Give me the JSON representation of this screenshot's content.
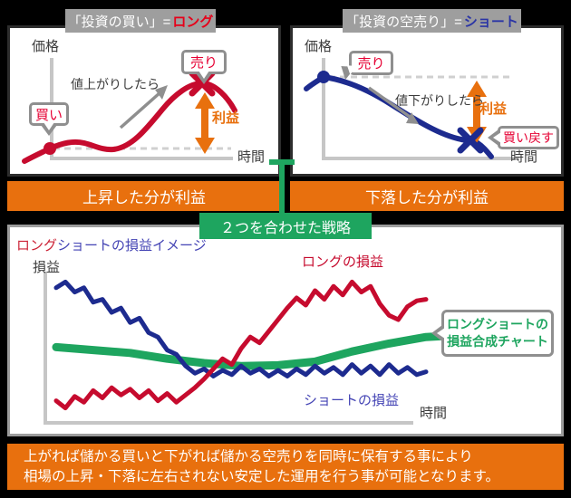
{
  "panels": {
    "long": {
      "title_plain": "「投資の買い」=",
      "title_accent": "ロング",
      "y_axis": "価格",
      "x_axis": "時間",
      "note": "値上がりしたら",
      "buy_label": "買い",
      "sell_label": "売り",
      "profit_label": "利益",
      "banner": "上昇した分が利益"
    },
    "short": {
      "title_plain": "「投資の空売り」=",
      "title_accent": "ショート",
      "y_axis": "価格",
      "x_axis": "時間",
      "note": "値下がりしたら",
      "sell_label": "売り",
      "buyback_label": "買い戻す",
      "profit_label": "利益",
      "banner": "下落した分が利益"
    }
  },
  "strategy_band_label": "２つを合わせた戦略",
  "bottom": {
    "title_accent": "ロング",
    "title_rest": "ショートの損益イメージ",
    "y_axis": "損益",
    "x_axis": "時間",
    "long_series_label": "ロングの損益",
    "short_series_label": "ショートの損益",
    "bubble_line1": "ロングショートの",
    "bubble_line2": "損益合成チャート"
  },
  "footer": {
    "line1": "上がれば儲かる買いと下がれば儲かる空売りを同時に保有する事により",
    "line2": "相場の上昇・下落に左右されない安定した運用を行う事が可能となります。"
  },
  "colors": {
    "long_red": "#c60b2e",
    "accent_red": "#e60019",
    "bubble_red": "#e60033",
    "short_blue": "#1d2b8f",
    "accent_blue": "#2b35a5",
    "title_blue": "#4343b4",
    "orange": "#e8700e",
    "green": "#1ea55f",
    "tab_gray": "#9e9e9e",
    "axis_gray": "#c6c6c6",
    "arrow_gray": "#8f8f8f",
    "dark_text": "#3c3c3c"
  },
  "chart_data": {
    "type": "line",
    "title": "ロングショートの損益イメージ",
    "xlabel": "時間",
    "ylabel": "損益",
    "x_range": [
      0,
      107
    ],
    "value_range": [
      0,
      1
    ],
    "grid": false,
    "legend_position": "inline-annotations",
    "annotations": [
      "ロングの損益",
      "ショートの損益",
      "ロングショートの損益合成チャート"
    ],
    "series": [
      {
        "name": "ロングショートの損益合成チャート",
        "color": "#1ea55f",
        "stroke_width": 9,
        "x": [
          0,
          10,
          20,
          30,
          40,
          50,
          60,
          70,
          80,
          90,
          100,
          107
        ],
        "values": [
          0.51,
          0.49,
          0.47,
          0.43,
          0.4,
          0.38,
          0.385,
          0.41,
          0.48,
          0.535,
          0.58,
          0.59
        ]
      },
      {
        "name": "ショートの損益",
        "color": "#1d2b8f",
        "stroke_width": 5,
        "x": [
          0,
          2.5,
          5,
          7.5,
          10,
          12.5,
          15,
          17.5,
          20,
          22.5,
          25,
          27.5,
          30,
          32.5,
          35,
          37.5,
          40,
          42.5,
          45,
          47.5,
          50,
          52.5,
          55,
          57.5,
          60,
          62.5,
          65,
          67.5,
          70,
          72.5,
          75,
          77.5,
          80,
          82.5,
          85,
          87.5,
          90,
          92.5,
          95,
          97.5,
          100
        ],
        "values": [
          0.92,
          0.96,
          0.89,
          0.92,
          0.82,
          0.84,
          0.75,
          0.78,
          0.68,
          0.71,
          0.61,
          0.58,
          0.49,
          0.46,
          0.38,
          0.33,
          0.36,
          0.31,
          0.35,
          0.32,
          0.38,
          0.33,
          0.36,
          0.31,
          0.35,
          0.31,
          0.36,
          0.32,
          0.38,
          0.33,
          0.37,
          0.32,
          0.39,
          0.33,
          0.38,
          0.32,
          0.39,
          0.33,
          0.37,
          0.32,
          0.34
        ]
      },
      {
        "name": "ロングの損益",
        "color": "#c60b2e",
        "stroke_width": 5,
        "x": [
          0,
          2.5,
          5,
          7.5,
          10,
          12.5,
          15,
          17.5,
          20,
          22.5,
          25,
          27.5,
          30,
          32.5,
          35,
          37.5,
          40,
          42.5,
          45,
          47.5,
          50,
          52.5,
          55,
          57.5,
          60,
          62.5,
          65,
          67.5,
          70,
          72.5,
          75,
          77.5,
          80,
          82.5,
          85,
          87.5,
          90,
          92.5,
          95,
          97.5,
          100
        ],
        "values": [
          0.14,
          0.09,
          0.17,
          0.13,
          0.21,
          0.16,
          0.23,
          0.18,
          0.22,
          0.16,
          0.21,
          0.14,
          0.19,
          0.13,
          0.18,
          0.23,
          0.29,
          0.36,
          0.43,
          0.39,
          0.5,
          0.58,
          0.54,
          0.62,
          0.7,
          0.78,
          0.85,
          0.8,
          0.9,
          0.84,
          0.93,
          0.87,
          0.96,
          0.89,
          0.93,
          0.81,
          0.73,
          0.7,
          0.79,
          0.83,
          0.84
        ]
      }
    ]
  }
}
